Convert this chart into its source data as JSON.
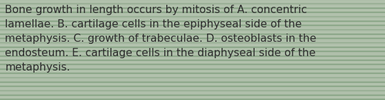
{
  "text": "Bone growth in length occurs by mitosis of A. concentric\nlamellae. B. cartilage cells in the epiphyseal side of the\nmetaphysis. C. growth of trabeculae. D. osteoblasts in the\nendosteum. E. cartilage cells in the diaphyseal side of the\nmetaphysis.",
  "bg_color_light": "#adbda8",
  "bg_color_dark": "#8fa98a",
  "stripe_light": "#b2c2ad",
  "stripe_dark": "#8da88a",
  "text_color": "#2e2e2e",
  "font_size": 11.2,
  "stripe_count": 46,
  "fig_width": 5.58,
  "fig_height": 1.46
}
